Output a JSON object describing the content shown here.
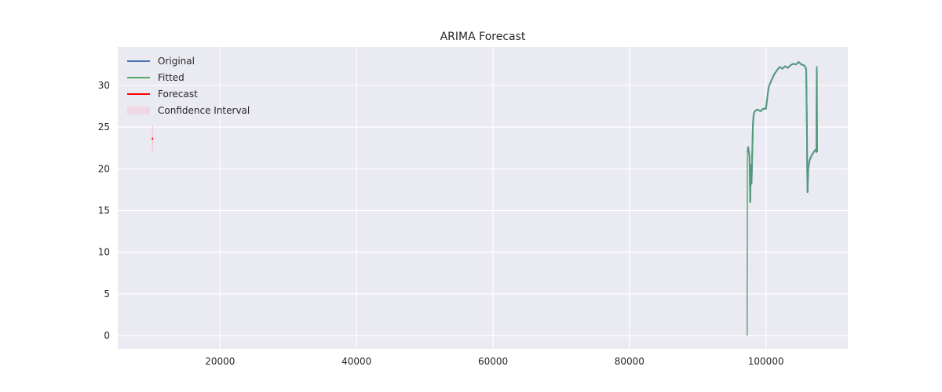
{
  "chart_data": {
    "type": "line",
    "title": "ARIMA Forecast",
    "xlabel": "",
    "ylabel": "",
    "xlim": [
      5000,
      112000
    ],
    "ylim": [
      -1.6,
      34.6
    ],
    "x_ticks": [
      20000,
      40000,
      60000,
      80000,
      100000
    ],
    "y_ticks": [
      0,
      5,
      10,
      15,
      20,
      25,
      30
    ],
    "grid": true,
    "legend_position": "top-left",
    "colors": {
      "background": "#eaeaf2",
      "grid": "#ffffff",
      "original": "#4c72b0",
      "fitted": "#55a868",
      "forecast": "#ff0000",
      "confidence": "#f4c5d3"
    },
    "legend": [
      "Original",
      "Fitted",
      "Forecast",
      "Confidence Interval"
    ],
    "series": [
      {
        "name": "Original",
        "x": [
          97300,
          97400,
          97500,
          97600,
          97700,
          97800,
          97900,
          98000,
          98100,
          98200,
          98300,
          98500,
          98800,
          99200,
          99600,
          100000,
          100200,
          100400,
          100800,
          101200,
          101600,
          102000,
          102400,
          102800,
          103200,
          103600,
          104000,
          104400,
          104800,
          105200,
          105600,
          105900,
          106000,
          106050,
          106100,
          106200,
          106400,
          106700,
          107000,
          107300,
          107400,
          107450,
          107500
        ],
        "y": [
          22.0,
          22.6,
          22.0,
          21.5,
          16.0,
          20.5,
          18.2,
          22.0,
          25.5,
          26.5,
          26.8,
          27.0,
          27.1,
          26.9,
          27.2,
          27.2,
          28.5,
          29.8,
          30.6,
          31.3,
          31.8,
          32.2,
          32.0,
          32.3,
          32.1,
          32.4,
          32.6,
          32.5,
          32.8,
          32.5,
          32.4,
          32.0,
          25.0,
          20.0,
          17.2,
          20.0,
          21.0,
          21.6,
          22.0,
          22.3,
          22.0,
          32.2,
          22.0
        ]
      },
      {
        "name": "Fitted",
        "x": [
          97250,
          97300,
          97400,
          97500,
          97600,
          97700,
          97800,
          97900,
          98000,
          98100,
          98200,
          98300,
          98500,
          98800,
          99200,
          99600,
          100000,
          100200,
          100400,
          100800,
          101200,
          101600,
          102000,
          102400,
          102800,
          103200,
          103600,
          104000,
          104400,
          104800,
          105200,
          105600,
          105900,
          106000,
          106050,
          106100,
          106200,
          106400,
          106700,
          107000,
          107300,
          107400,
          107450,
          107500
        ],
        "y": [
          0.0,
          22.0,
          22.6,
          22.0,
          21.5,
          16.0,
          20.5,
          18.2,
          22.0,
          25.5,
          26.5,
          26.8,
          27.0,
          27.1,
          26.9,
          27.2,
          27.2,
          28.5,
          29.8,
          30.6,
          31.3,
          31.8,
          32.2,
          32.0,
          32.3,
          32.1,
          32.4,
          32.6,
          32.5,
          32.8,
          32.5,
          32.4,
          32.0,
          25.0,
          20.0,
          17.2,
          20.0,
          21.0,
          21.6,
          22.0,
          22.3,
          22.0,
          32.2,
          22.0
        ]
      },
      {
        "name": "Forecast",
        "x": [
          10000,
          10200
        ],
        "y": [
          23.6,
          23.6
        ]
      },
      {
        "name": "Confidence Interval",
        "x": [
          10100
        ],
        "lower": [
          22.0
        ],
        "upper": [
          25.2
        ]
      }
    ]
  }
}
